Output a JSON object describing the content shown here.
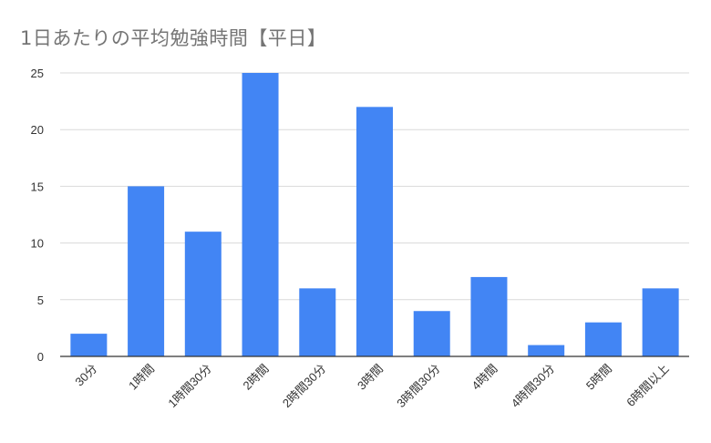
{
  "chart_data": {
    "type": "bar",
    "title": "1日あたりの平均勉強時間【平日】",
    "xlabel": "",
    "ylabel": "",
    "categories": [
      "30分",
      "1時間",
      "1時間30分",
      "2時間",
      "2時間30分",
      "3時間",
      "3時間30分",
      "4時間",
      "4時間30分",
      "5時間",
      "6時間以上"
    ],
    "values": [
      2,
      15,
      11,
      25,
      6,
      22,
      4,
      7,
      1,
      3,
      6
    ],
    "ylim": [
      0,
      25
    ],
    "yticks": [
      0,
      5,
      10,
      15,
      20,
      25
    ],
    "grid": true,
    "legend": "none",
    "bar_color": "#4285F4",
    "grid_color": "#d9d9d9",
    "axis_color": "#333333"
  }
}
